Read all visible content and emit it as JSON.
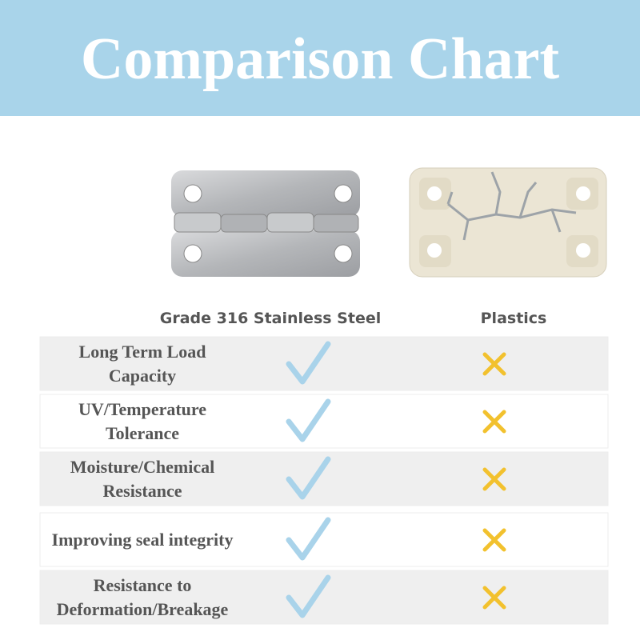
{
  "header": {
    "title": "Comparison Chart"
  },
  "table": {
    "columns": [
      "Grade 316 Stainless Steel",
      "Plastics"
    ],
    "rows": [
      {
        "label": [
          "Long Term Load",
          "Capacity"
        ]
      },
      {
        "label": [
          "UV/Temperature",
          "Tolerance"
        ]
      },
      {
        "label": [
          "Moisture/Chemical",
          "Resistance"
        ]
      },
      {
        "label": [
          "Improving seal integrity"
        ]
      },
      {
        "label": [
          "Resistance to",
          "Deformation/Breakage"
        ]
      }
    ]
  }
}
